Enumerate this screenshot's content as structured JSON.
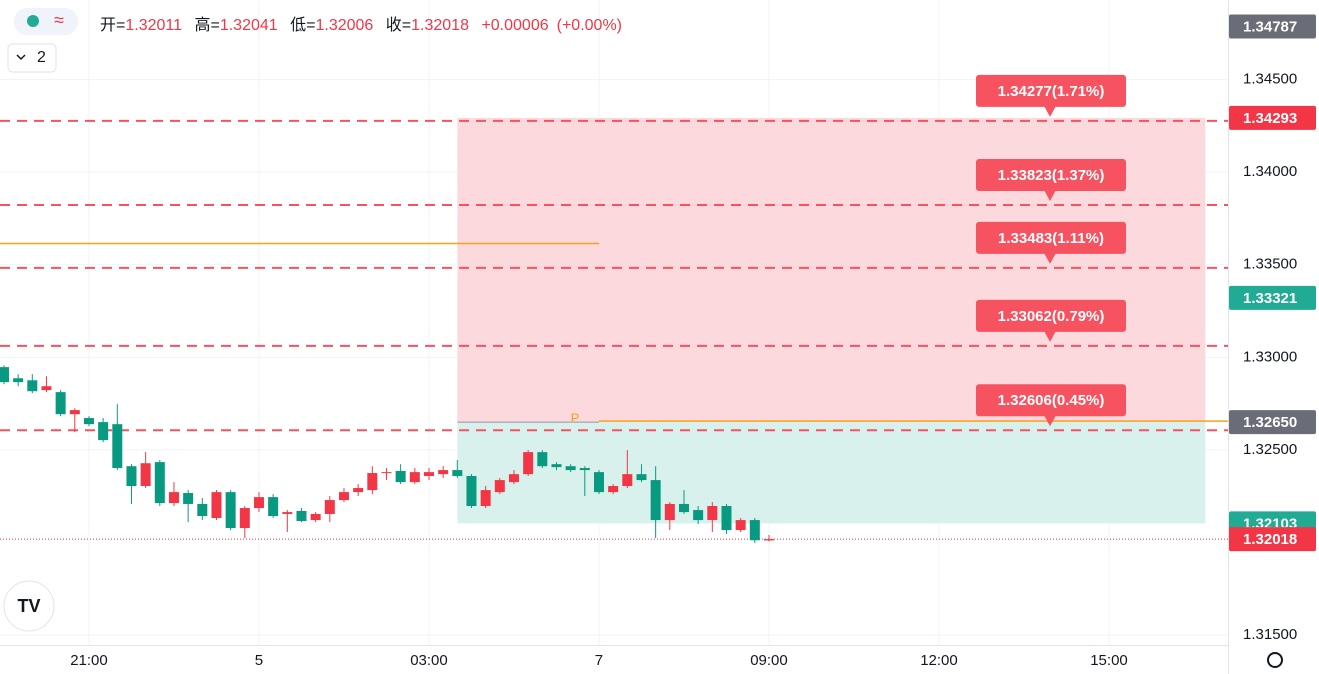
{
  "chart_data": {
    "type": "candlestick",
    "legend": {
      "open_label": "开=",
      "open": 1.32011,
      "high_label": "高=",
      "high": 1.32041,
      "low_label": "低=",
      "low": 1.32006,
      "close_label": "收=",
      "close": 1.32018,
      "change": {
        "value": 6e-05,
        "label": "+0.00006"
      },
      "change_pct": {
        "value": 0,
        "label": "(+0.00%)"
      }
    },
    "indicator_count": 2,
    "up_color": "#f23645",
    "down_color": "#089981",
    "x": [
      -6,
      -5,
      -4,
      -3,
      -2,
      -1,
      0,
      1,
      2,
      3,
      4,
      5,
      6,
      7,
      8,
      9,
      10,
      11,
      12,
      13,
      14,
      15,
      16,
      17,
      18,
      19,
      20,
      21,
      22,
      23,
      24,
      25,
      26,
      27,
      28,
      29,
      30,
      31,
      32,
      33,
      34,
      35,
      36,
      37,
      38,
      39,
      40,
      41,
      42,
      43,
      44,
      45,
      46,
      47,
      48
    ],
    "candles": [
      [
        1.32947,
        1.32957,
        1.32855,
        1.32866
      ],
      [
        1.32887,
        1.32909,
        1.32844,
        1.32866
      ],
      [
        1.32876,
        1.32909,
        1.32806,
        1.32817
      ],
      [
        1.32823,
        1.32898,
        1.32812,
        1.32844
      ],
      [
        1.32812,
        1.32823,
        1.32682,
        1.32693
      ],
      [
        1.32693,
        1.32725,
        1.32596,
        1.32715
      ],
      [
        1.32672,
        1.32682,
        1.32628,
        1.32639
      ],
      [
        1.3265,
        1.32672,
        1.32542,
        1.32553
      ],
      [
        1.32639,
        1.32747,
        1.32391,
        1.32402
      ],
      [
        1.32412,
        1.32423,
        1.32208,
        1.32305
      ],
      [
        1.32305,
        1.32488,
        1.32294,
        1.32428
      ],
      [
        1.32434,
        1.32445,
        1.32197,
        1.32213
      ],
      [
        1.32213,
        1.32326,
        1.32197,
        1.32272
      ],
      [
        1.32267,
        1.32283,
        1.3211,
        1.32208
      ],
      [
        1.32208,
        1.3224,
        1.32121,
        1.32143
      ],
      [
        1.32132,
        1.32283,
        1.32121,
        1.32272
      ],
      [
        1.32272,
        1.32283,
        1.32067,
        1.32078
      ],
      [
        1.32078,
        1.32197,
        1.32024,
        1.32186
      ],
      [
        1.32186,
        1.32272,
        1.32164,
        1.32245
      ],
      [
        1.32245,
        1.32261,
        1.32132,
        1.32143
      ],
      [
        1.32154,
        1.32175,
        1.32056,
        1.32164
      ],
      [
        1.3217,
        1.32186,
        1.3211,
        1.32116
      ],
      [
        1.32121,
        1.32164,
        1.3211,
        1.32154
      ],
      [
        1.32154,
        1.32251,
        1.3211,
        1.32229
      ],
      [
        1.32229,
        1.32294,
        1.32218,
        1.32272
      ],
      [
        1.32272,
        1.32315,
        1.32251,
        1.32294
      ],
      [
        1.32283,
        1.32412,
        1.32261,
        1.32375
      ],
      [
        1.32375,
        1.32402,
        1.32337,
        1.3238
      ],
      [
        1.32386,
        1.32423,
        1.32315,
        1.32326
      ],
      [
        1.32326,
        1.32402,
        1.32315,
        1.3238
      ],
      [
        1.32359,
        1.32402,
        1.32337,
        1.3238
      ],
      [
        1.32369,
        1.32412,
        1.32348,
        1.32391
      ],
      [
        1.32391,
        1.32445,
        1.32348,
        1.32359
      ],
      [
        1.32359,
        1.32369,
        1.32186,
        1.32197
      ],
      [
        1.32197,
        1.32305,
        1.32186,
        1.32283
      ],
      [
        1.32272,
        1.32348,
        1.32261,
        1.32337
      ],
      [
        1.32326,
        1.32391,
        1.32315,
        1.32369
      ],
      [
        1.32369,
        1.32499,
        1.32359,
        1.32488
      ],
      [
        1.32488,
        1.32499,
        1.32402,
        1.32412
      ],
      [
        1.32423,
        1.32434,
        1.32391,
        1.32407
      ],
      [
        1.32412,
        1.32423,
        1.3238,
        1.32391
      ],
      [
        1.32402,
        1.32412,
        1.32251,
        1.32391
      ],
      [
        1.3238,
        1.32391,
        1.32261,
        1.32272
      ],
      [
        1.32272,
        1.32315,
        1.32261,
        1.32305
      ],
      [
        1.32305,
        1.32499,
        1.32294,
        1.32369
      ],
      [
        1.32369,
        1.32423,
        1.32326,
        1.32337
      ],
      [
        1.32337,
        1.32412,
        1.32024,
        1.32121
      ],
      [
        1.32121,
        1.32218,
        1.32067,
        1.32208
      ],
      [
        1.32208,
        1.32283,
        1.32154,
        1.32164
      ],
      [
        1.32175,
        1.32197,
        1.321,
        1.32121
      ],
      [
        1.32121,
        1.32218,
        1.32056,
        1.32197
      ],
      [
        1.32197,
        1.32208,
        1.32046,
        1.32067
      ],
      [
        1.32067,
        1.32132,
        1.32056,
        1.32121
      ],
      [
        1.32121,
        1.32132,
        1.31997,
        1.32012
      ],
      [
        1.32011,
        1.32041,
        1.32006,
        1.32018
      ]
    ],
    "xlim": [
      -6.28,
      80.4
    ],
    "xticks": [
      {
        "value": 0,
        "label": "21:00"
      },
      {
        "value": 12,
        "label": "5"
      },
      {
        "value": 24,
        "label": "03:00"
      },
      {
        "value": 36,
        "label": "7"
      },
      {
        "value": 48,
        "label": "09:00"
      },
      {
        "value": 60,
        "label": "12:00"
      },
      {
        "value": 72,
        "label": "15:00"
      }
    ],
    "ylim": [
      1.3143,
      1.3493
    ],
    "yticks": [
      {
        "value": 1.345,
        "label": "1.34500"
      },
      {
        "value": 1.34,
        "label": "1.34000"
      },
      {
        "value": 1.335,
        "label": "1.33500"
      },
      {
        "value": 1.33,
        "label": "1.33000"
      },
      {
        "value": 1.325,
        "label": "1.32500"
      },
      {
        "value": 1.315,
        "label": "1.31500"
      }
    ],
    "grid": true,
    "levels": [
      {
        "value": 1.34277,
        "label": "1.34277(1.71%)"
      },
      {
        "value": 1.33823,
        "label": "1.33823(1.37%)"
      },
      {
        "value": 1.33483,
        "label": "1.33483(1.11%)"
      },
      {
        "value": 1.33062,
        "label": "1.33062(0.79%)"
      },
      {
        "value": 1.32606,
        "label": "1.32606(0.45%)"
      }
    ],
    "level_color": "#f7525f",
    "position": {
      "entry": 1.3265,
      "target": 1.34293,
      "stop": 1.32103,
      "x": [
        26,
        78.8
      ],
      "marker": "P",
      "marker_x": 34.3,
      "target_color": "#fbd9dd",
      "stop_color": "#d9f1ec"
    },
    "orange_line": {
      "value": 1.33615,
      "x": [
        -6.28,
        36
      ],
      "color": "#f7a21b"
    },
    "price_labels": [
      1.34787,
      1.34293,
      1.33321,
      {
        "value": 1.3265,
        "label": "1.32650"
      },
      1.32103,
      1.32018
    ],
    "price_label_colors": [
      "#6a6d78",
      "#f23645",
      "#22ab94",
      "#6a6d78",
      "#22ab94",
      "#f23645"
    ]
  }
}
